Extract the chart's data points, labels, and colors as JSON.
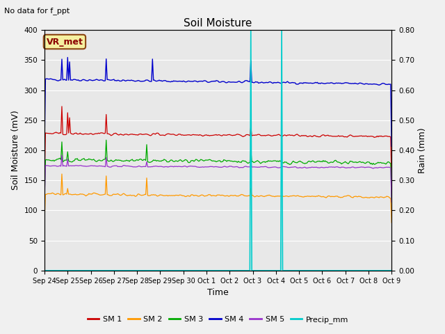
{
  "title": "Soil Moisture",
  "subtitle": "No data for f_ppt",
  "xlabel": "Time",
  "ylabel_left": "Soil Moisture (mV)",
  "ylabel_right": "Rain (mm)",
  "ylim_left": [
    0,
    400
  ],
  "ylim_right": [
    0,
    0.8
  ],
  "background_color": "#e8e8e8",
  "fig_color": "#f0f0f0",
  "annotation_text": "VR_met",
  "sm1_color": "#cc0000",
  "sm2_color": "#ff9900",
  "sm3_color": "#00aa00",
  "sm4_color": "#0000cc",
  "sm5_color": "#9933cc",
  "precip_color": "#00cccc",
  "legend_labels": [
    "SM 1",
    "SM 2",
    "SM 3",
    "SM 4",
    "SM 5",
    "Precip_mm"
  ],
  "legend_colors": [
    "#cc0000",
    "#ff9900",
    "#00aa00",
    "#0000cc",
    "#9933cc",
    "#00cccc"
  ],
  "xtick_labels": [
    "Sep 24",
    "Sep 25",
    "Sep 26",
    "Sep 27",
    "Sep 28",
    "Sep 29",
    "Sep 30",
    "Oct 1",
    "Oct 2",
    "Oct 3",
    "Oct 4",
    "Oct 5",
    "Oct 6",
    "Oct 7",
    "Oct 8",
    "Oct 9"
  ]
}
